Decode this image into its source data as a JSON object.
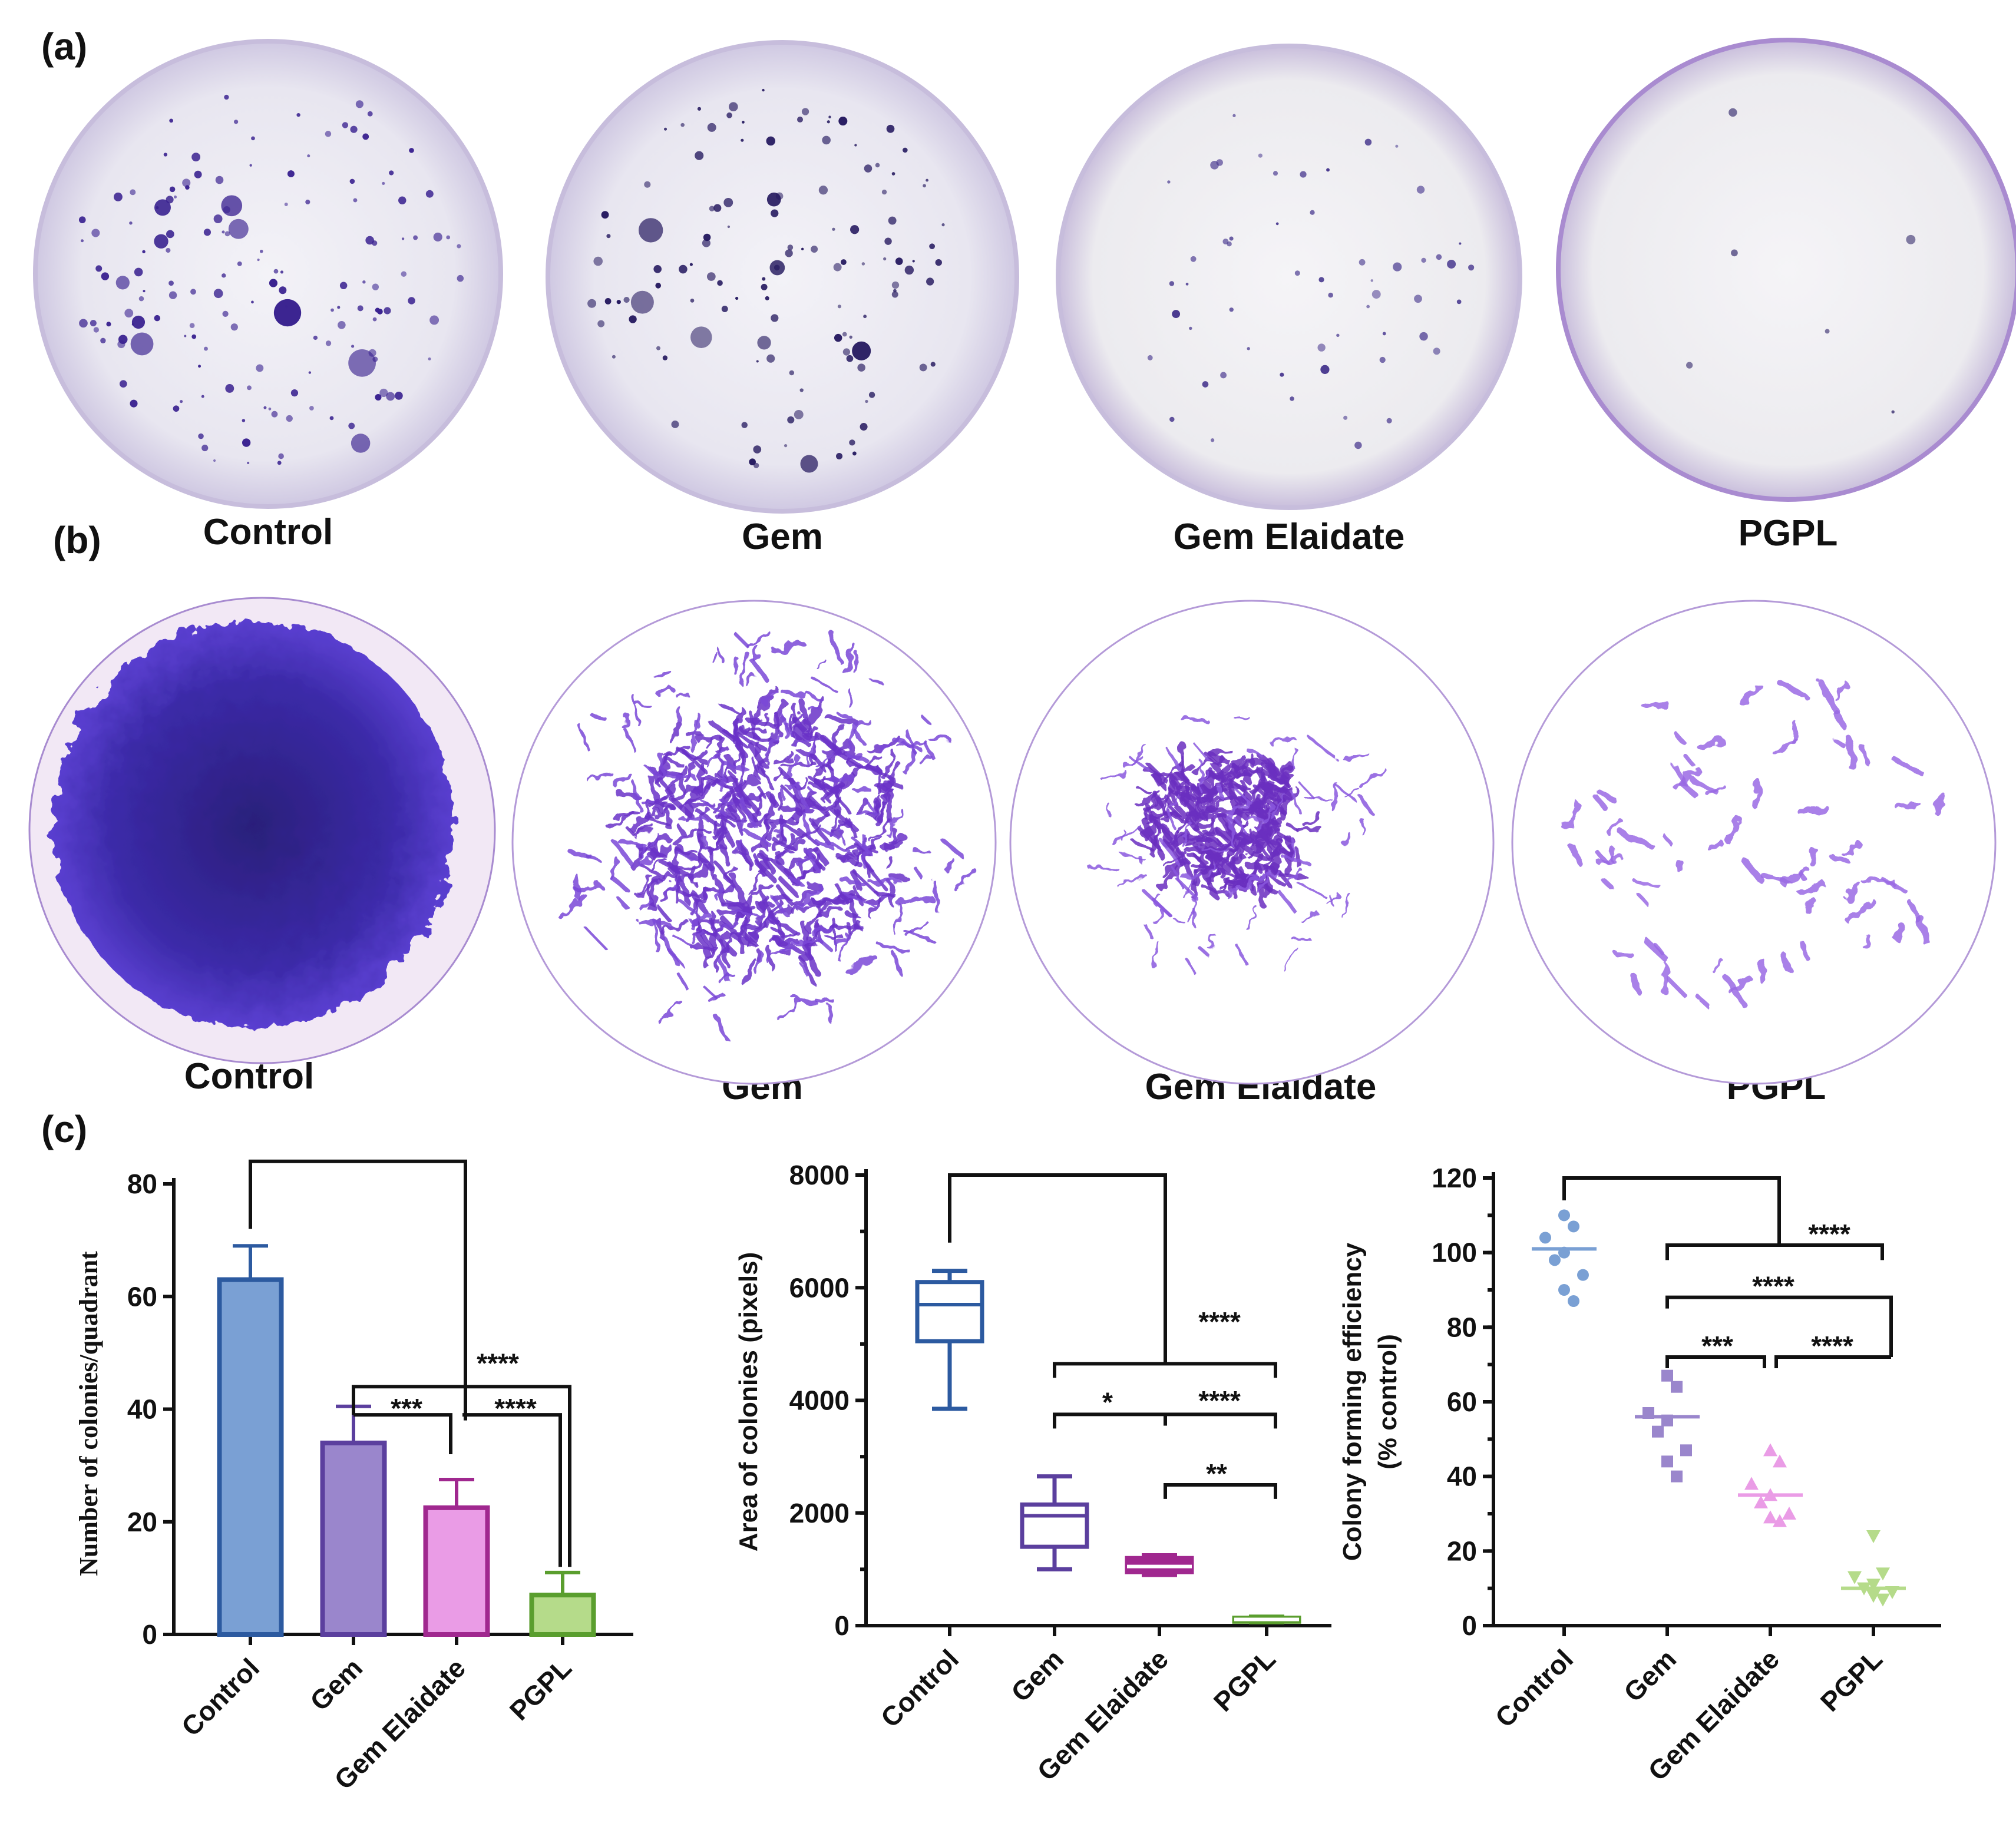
{
  "panel_a": {
    "letter": "(a)",
    "dishes": [
      {
        "label": "Control",
        "colonies": "many"
      },
      {
        "label": "Gem",
        "colonies": "moderate"
      },
      {
        "label": "Gem Elaidate",
        "colonies": "few"
      },
      {
        "label": "PGPL",
        "colonies": "very few"
      }
    ]
  },
  "panel_b": {
    "letter": "(b)",
    "images": [
      {
        "label": "Control"
      },
      {
        "label": "Gem"
      },
      {
        "label": "Gem Elaidate"
      },
      {
        "label": "PGPL"
      }
    ]
  },
  "panel_c": {
    "letter": "(c)"
  },
  "colors": {
    "control": "#7aa0d4",
    "control_edge": "#2c5aa0",
    "gem": "#9a86cc",
    "gem_edge": "#5b3f9e",
    "elaidate": "#ea9ce6",
    "elaidate_edge": "#a0288f",
    "pgpl": "#b5db8a",
    "pgpl_edge": "#5a9e2e",
    "stain_dark": "#3a1f8a",
    "stain_mid": "#6a3fc8",
    "stain_light": "#b07ae8"
  },
  "chart_data": [
    {
      "type": "bar",
      "categories": [
        "Control",
        "Gem",
        "Gem Elaidate",
        "PGPL"
      ],
      "values": [
        63,
        34,
        22.5,
        7
      ],
      "errors": [
        6,
        6.5,
        5,
        4
      ],
      "ylabel": "Number of colonies/quadrant",
      "ylim": [
        0,
        80
      ],
      "yticks": [
        0,
        20,
        40,
        60,
        80
      ],
      "significance": [
        {
          "from": "Control",
          "to": "PGPL",
          "label": "****"
        },
        {
          "from": "Gem",
          "to": "Gem Elaidate",
          "label": "***"
        },
        {
          "from": "Gem Elaidate",
          "to": "PGPL",
          "label": "****"
        }
      ]
    },
    {
      "type": "box",
      "categories": [
        "Control",
        "Gem",
        "Gem Elaidate",
        "PGPL"
      ],
      "boxes": [
        {
          "min": 3850,
          "q1": 5050,
          "median": 5700,
          "q3": 6100,
          "max": 6300
        },
        {
          "min": 1000,
          "q1": 1400,
          "median": 1950,
          "q3": 2150,
          "max": 2650
        },
        {
          "min": 900,
          "q1": 950,
          "median": 1050,
          "q3": 1200,
          "max": 1250
        },
        {
          "min": 60,
          "q1": 70,
          "median": 110,
          "q3": 140,
          "max": 160
        }
      ],
      "ylabel": "Area of colonies (pixels)",
      "ylim": [
        0,
        8000
      ],
      "yticks": [
        0,
        2000,
        4000,
        6000,
        8000
      ],
      "significance": [
        {
          "from": "Control",
          "to": "Gem Elaidate",
          "label": "****"
        },
        {
          "from": "Gem",
          "to": "Gem Elaidate",
          "label": "*"
        },
        {
          "from": "Gem Elaidate",
          "to": "PGPL",
          "label": "****"
        },
        {
          "from": "Gem Elaidate",
          "to": "PGPL",
          "label": "**"
        }
      ]
    },
    {
      "type": "scatter",
      "categories": [
        "Control",
        "Gem",
        "Gem Elaidate",
        "PGPL"
      ],
      "points": [
        [
          110,
          107,
          104,
          100,
          98,
          94,
          90,
          87
        ],
        [
          67,
          64,
          57,
          55,
          52,
          47,
          44,
          40
        ],
        [
          47,
          44,
          38,
          35,
          33,
          30,
          29,
          28
        ],
        [
          24,
          14,
          13,
          11,
          10,
          9,
          8,
          7
        ]
      ],
      "means": [
        101,
        56,
        35,
        10
      ],
      "ylabel": "Colony forming efficiency",
      "ylabel2": "(% control)",
      "ylim": [
        0,
        120
      ],
      "yticks": [
        0,
        20,
        40,
        60,
        80,
        100,
        120
      ],
      "significance": [
        {
          "from": "Control",
          "to": "PGPL",
          "label": "****"
        },
        {
          "from": "Gem",
          "to": "PGPL",
          "label": "****"
        },
        {
          "from": "Gem",
          "to": "Gem Elaidate",
          "label": "***"
        },
        {
          "from": "Gem Elaidate",
          "to": "PGPL",
          "label": "****"
        }
      ]
    }
  ]
}
